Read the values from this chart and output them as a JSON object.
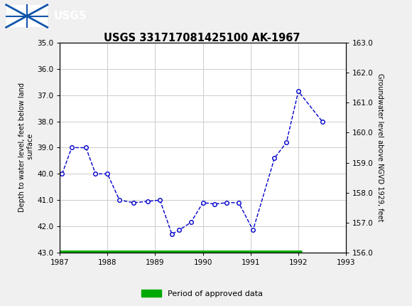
{
  "title": "USGS 331717081425100 AK-1967",
  "ylabel_left": "Depth to water level, feet below land\n surface",
  "ylabel_right": "Groundwater level above NGVD 1929, feet",
  "xlim": [
    1987,
    1993
  ],
  "ylim_left": [
    43.0,
    35.0
  ],
  "ylim_right": [
    156.0,
    163.0
  ],
  "yticks_left": [
    35.0,
    36.0,
    37.0,
    38.0,
    39.0,
    40.0,
    41.0,
    42.0,
    43.0
  ],
  "yticks_right": [
    156.0,
    157.0,
    158.0,
    159.0,
    160.0,
    161.0,
    162.0,
    163.0
  ],
  "xticks": [
    1987,
    1988,
    1989,
    1990,
    1991,
    1992,
    1993
  ],
  "data_x": [
    1987.05,
    1987.25,
    1987.55,
    1987.75,
    1988.0,
    1988.25,
    1988.55,
    1988.85,
    1989.1,
    1989.35,
    1989.5,
    1989.75,
    1990.0,
    1990.25,
    1990.5,
    1990.75,
    1991.05,
    1991.5,
    1991.75,
    1992.0,
    1992.5
  ],
  "data_y": [
    40.0,
    39.0,
    39.0,
    40.0,
    40.0,
    41.0,
    41.1,
    41.05,
    41.0,
    42.3,
    42.15,
    41.85,
    41.1,
    41.15,
    41.1,
    41.1,
    42.15,
    39.4,
    38.8,
    36.85,
    38.0
  ],
  "line_color": "#0000cc",
  "marker_facecolor": "white",
  "marker_edgecolor": "#0000cc",
  "marker_size": 4,
  "grid_color": "#cccccc",
  "bg_color": "#f0f0f0",
  "plot_bg_color": "#ffffff",
  "header_bg_color": "#1b5e38",
  "legend_label": "Period of approved data",
  "legend_color": "#00aa00",
  "approved_bar_y": 43.0,
  "approved_bar_xstart": 1987.0,
  "approved_bar_xend": 1992.08
}
